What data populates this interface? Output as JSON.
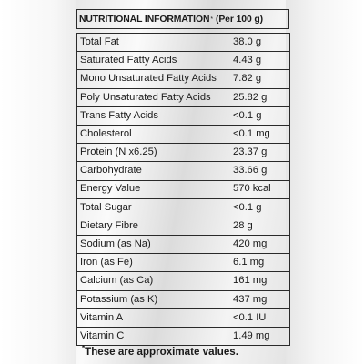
{
  "header": {
    "title": "NUTRITIONAL INFORMATION",
    "asterisk": "*",
    "per": "(Per 100 g)"
  },
  "rows": [
    {
      "label": "Total Fat",
      "value": "38.0 g"
    },
    {
      "label": "Saturated Fatty Acids",
      "value": "4.43 g"
    },
    {
      "label": "Mono Unsaturated Fatty Acids",
      "value": "7.82 g"
    },
    {
      "label": "Poly Unsaturated Fatty Acids",
      "value": "25.82 g"
    },
    {
      "label": "Trans Fatty Acids",
      "value": "<0.1 g"
    },
    {
      "label": "Cholesterol",
      "value": "<0.1 mg"
    },
    {
      "label": "Protein (N x6.25)",
      "value": "23.37 g"
    },
    {
      "label": "Carbohydrate",
      "value": "33.66 g"
    },
    {
      "label": "Energy Value",
      "value": "570 kcal"
    },
    {
      "label": "Total Sugar",
      "value": "<0.1 g"
    },
    {
      "label": "Dietary Fibre",
      "value": "28 g"
    },
    {
      "label": "Sodium (as Na)",
      "value": "420 mg"
    },
    {
      "label": "Iron (as Fe)",
      "value": "6.1 mg"
    },
    {
      "label": "Calcium (as Ca)",
      "value": "161 mg"
    },
    {
      "label": "Potassium (as K)",
      "value": "437 mg"
    },
    {
      "label": "Vitamin A",
      "value": "<0.1 IU"
    },
    {
      "label": "Vitamin C",
      "value": "1.49 mg"
    }
  ],
  "footnote": {
    "asterisk": "*",
    "text": "These are approximate values."
  }
}
